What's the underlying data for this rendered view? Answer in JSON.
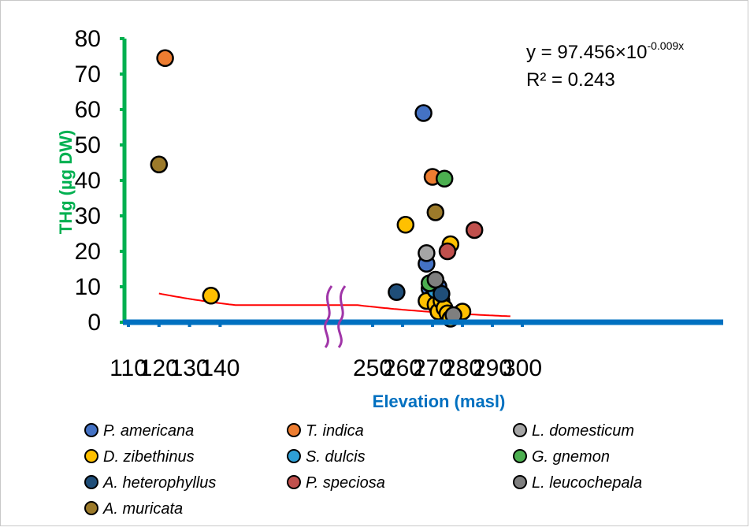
{
  "chart_data": {
    "type": "scatter",
    "xlabel": "Elevation (masl)",
    "ylabel": "THg (µg DW)",
    "x_ticks": [
      "110",
      "120",
      "130",
      "140",
      "250",
      "260",
      "270",
      "280",
      "290",
      "300"
    ],
    "y_ticks": [
      "0",
      "10",
      "20",
      "30",
      "40",
      "50",
      "60",
      "70",
      "80"
    ],
    "ylim": [
      0,
      80
    ],
    "axis_break": "between 140 and 250",
    "equation": {
      "prefix": "y = 97.456×10",
      "exponent": "-0.009x"
    },
    "r2": "R² = 0.243",
    "trendline": {
      "a": 97.456,
      "b": -0.009,
      "x_from": 120,
      "x_to": 296,
      "color": "#ff0000"
    },
    "axis_colors": {
      "y": "#00b050",
      "x": "#0070c0"
    },
    "legend_position": "bottom",
    "series": [
      {
        "name": "P. americana",
        "color": "#4472c4",
        "points": [
          [
            267,
            59
          ],
          [
            268,
            16.5
          ],
          [
            269,
            9.5
          ],
          [
            272,
            10
          ]
        ]
      },
      {
        "name": "T. indica",
        "color": "#ed7d31",
        "points": [
          [
            122,
            74.5
          ],
          [
            270,
            41
          ]
        ]
      },
      {
        "name": "L. domesticum",
        "color": "#a5a5a5",
        "points": [
          [
            268,
            19.5
          ],
          [
            270,
            7
          ]
        ]
      },
      {
        "name": "D. zibethinus",
        "color": "#ffc000",
        "points": [
          [
            137,
            7.5
          ],
          [
            261,
            27.5
          ],
          [
            268,
            6
          ],
          [
            271,
            5
          ],
          [
            272,
            3
          ],
          [
            273,
            6
          ],
          [
            274,
            4
          ],
          [
            275,
            2.5
          ],
          [
            276,
            22
          ],
          [
            276,
            1
          ],
          [
            280,
            3
          ]
        ]
      },
      {
        "name": "S. dulcis",
        "color": "#2e9fd6",
        "points": [
          [
            271,
            9
          ]
        ]
      },
      {
        "name": "G. gnemon",
        "color": "#4caf50",
        "points": [
          [
            269,
            11
          ],
          [
            274,
            40.5
          ]
        ]
      },
      {
        "name": "A. heterophyllus",
        "color": "#1f4e79",
        "points": [
          [
            258,
            8.5
          ],
          [
            273,
            8
          ]
        ]
      },
      {
        "name": "P. speciosa",
        "color": "#c0504d",
        "points": [
          [
            275,
            20
          ],
          [
            284,
            26
          ]
        ]
      },
      {
        "name": "L. leucochepala",
        "color": "#7f7f7f",
        "points": [
          [
            271,
            12
          ],
          [
            277,
            2
          ]
        ]
      },
      {
        "name": "A. muricata",
        "color": "#9c7a2a",
        "points": [
          [
            120,
            44.5
          ],
          [
            271,
            31
          ]
        ]
      }
    ]
  }
}
